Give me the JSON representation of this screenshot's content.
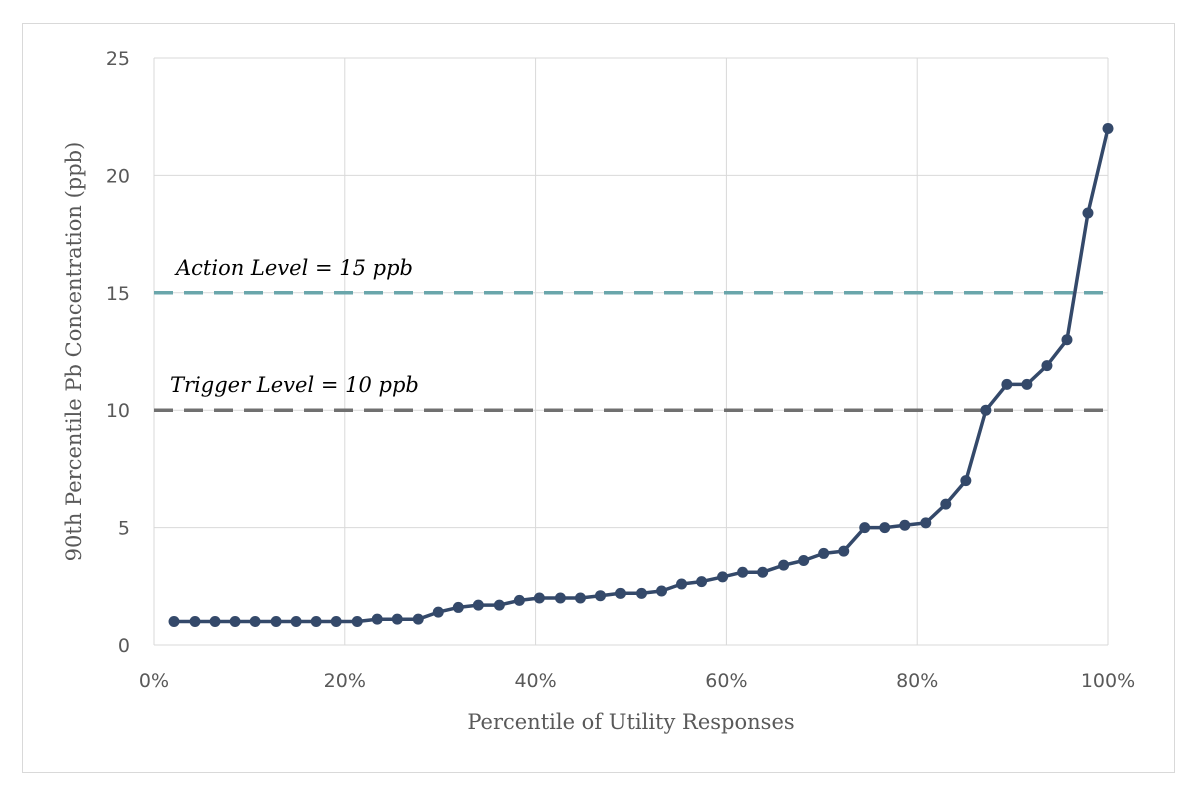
{
  "chart_data": {
    "type": "line",
    "title": "",
    "xlabel": "Percentile of Utility Responses",
    "ylabel": "90th Percentile Pb Concentration (ppb)",
    "xlim": [
      0,
      100
    ],
    "ylim": [
      0,
      25
    ],
    "x_ticks": [
      "0%",
      "20%",
      "40%",
      "60%",
      "80%",
      "100%"
    ],
    "x_tick_values": [
      0,
      20,
      40,
      60,
      80,
      100
    ],
    "y_ticks": [
      "0",
      "5",
      "10",
      "15",
      "20",
      "25"
    ],
    "y_tick_values": [
      0,
      5,
      10,
      15,
      20,
      25
    ],
    "grid": true,
    "colors": {
      "series": "#34496a",
      "action": "#6aa6ab",
      "trigger": "#707070",
      "grid": "#d9d9d9"
    },
    "series": [
      {
        "x": [
          2.1,
          4.3,
          6.4,
          8.5,
          10.6,
          12.8,
          14.9,
          17.0,
          19.1,
          21.3,
          23.4,
          25.5,
          27.7,
          29.8,
          31.9,
          34.0,
          36.2,
          38.3,
          40.4,
          42.6,
          44.7,
          46.8,
          48.9,
          51.1,
          53.2,
          55.3,
          57.4,
          59.6,
          61.7,
          63.8,
          66.0,
          68.1,
          70.2,
          72.3,
          74.5,
          76.6,
          78.7,
          80.9,
          83.0,
          85.1,
          87.2,
          89.4,
          91.5,
          93.6,
          95.7,
          97.9,
          100.0
        ],
        "values": [
          1.0,
          1.0,
          1.0,
          1.0,
          1.0,
          1.0,
          1.0,
          1.0,
          1.0,
          1.0,
          1.1,
          1.1,
          1.1,
          1.4,
          1.6,
          1.7,
          1.7,
          1.9,
          2.0,
          2.0,
          2.0,
          2.1,
          2.2,
          2.2,
          2.3,
          2.6,
          2.7,
          2.9,
          3.1,
          3.1,
          3.4,
          3.6,
          3.9,
          4.0,
          5.0,
          5.0,
          5.1,
          5.2,
          6.0,
          7.0,
          10.0,
          11.1,
          11.1,
          11.9,
          13.0,
          18.4,
          22.0
        ]
      }
    ],
    "reference_lines": [
      {
        "value": 15,
        "label": "Action Level = 15 ppb",
        "color": "#6aa6ab"
      },
      {
        "value": 10,
        "label": "Trigger Level = 10 ppb",
        "color": "#707070"
      }
    ]
  }
}
